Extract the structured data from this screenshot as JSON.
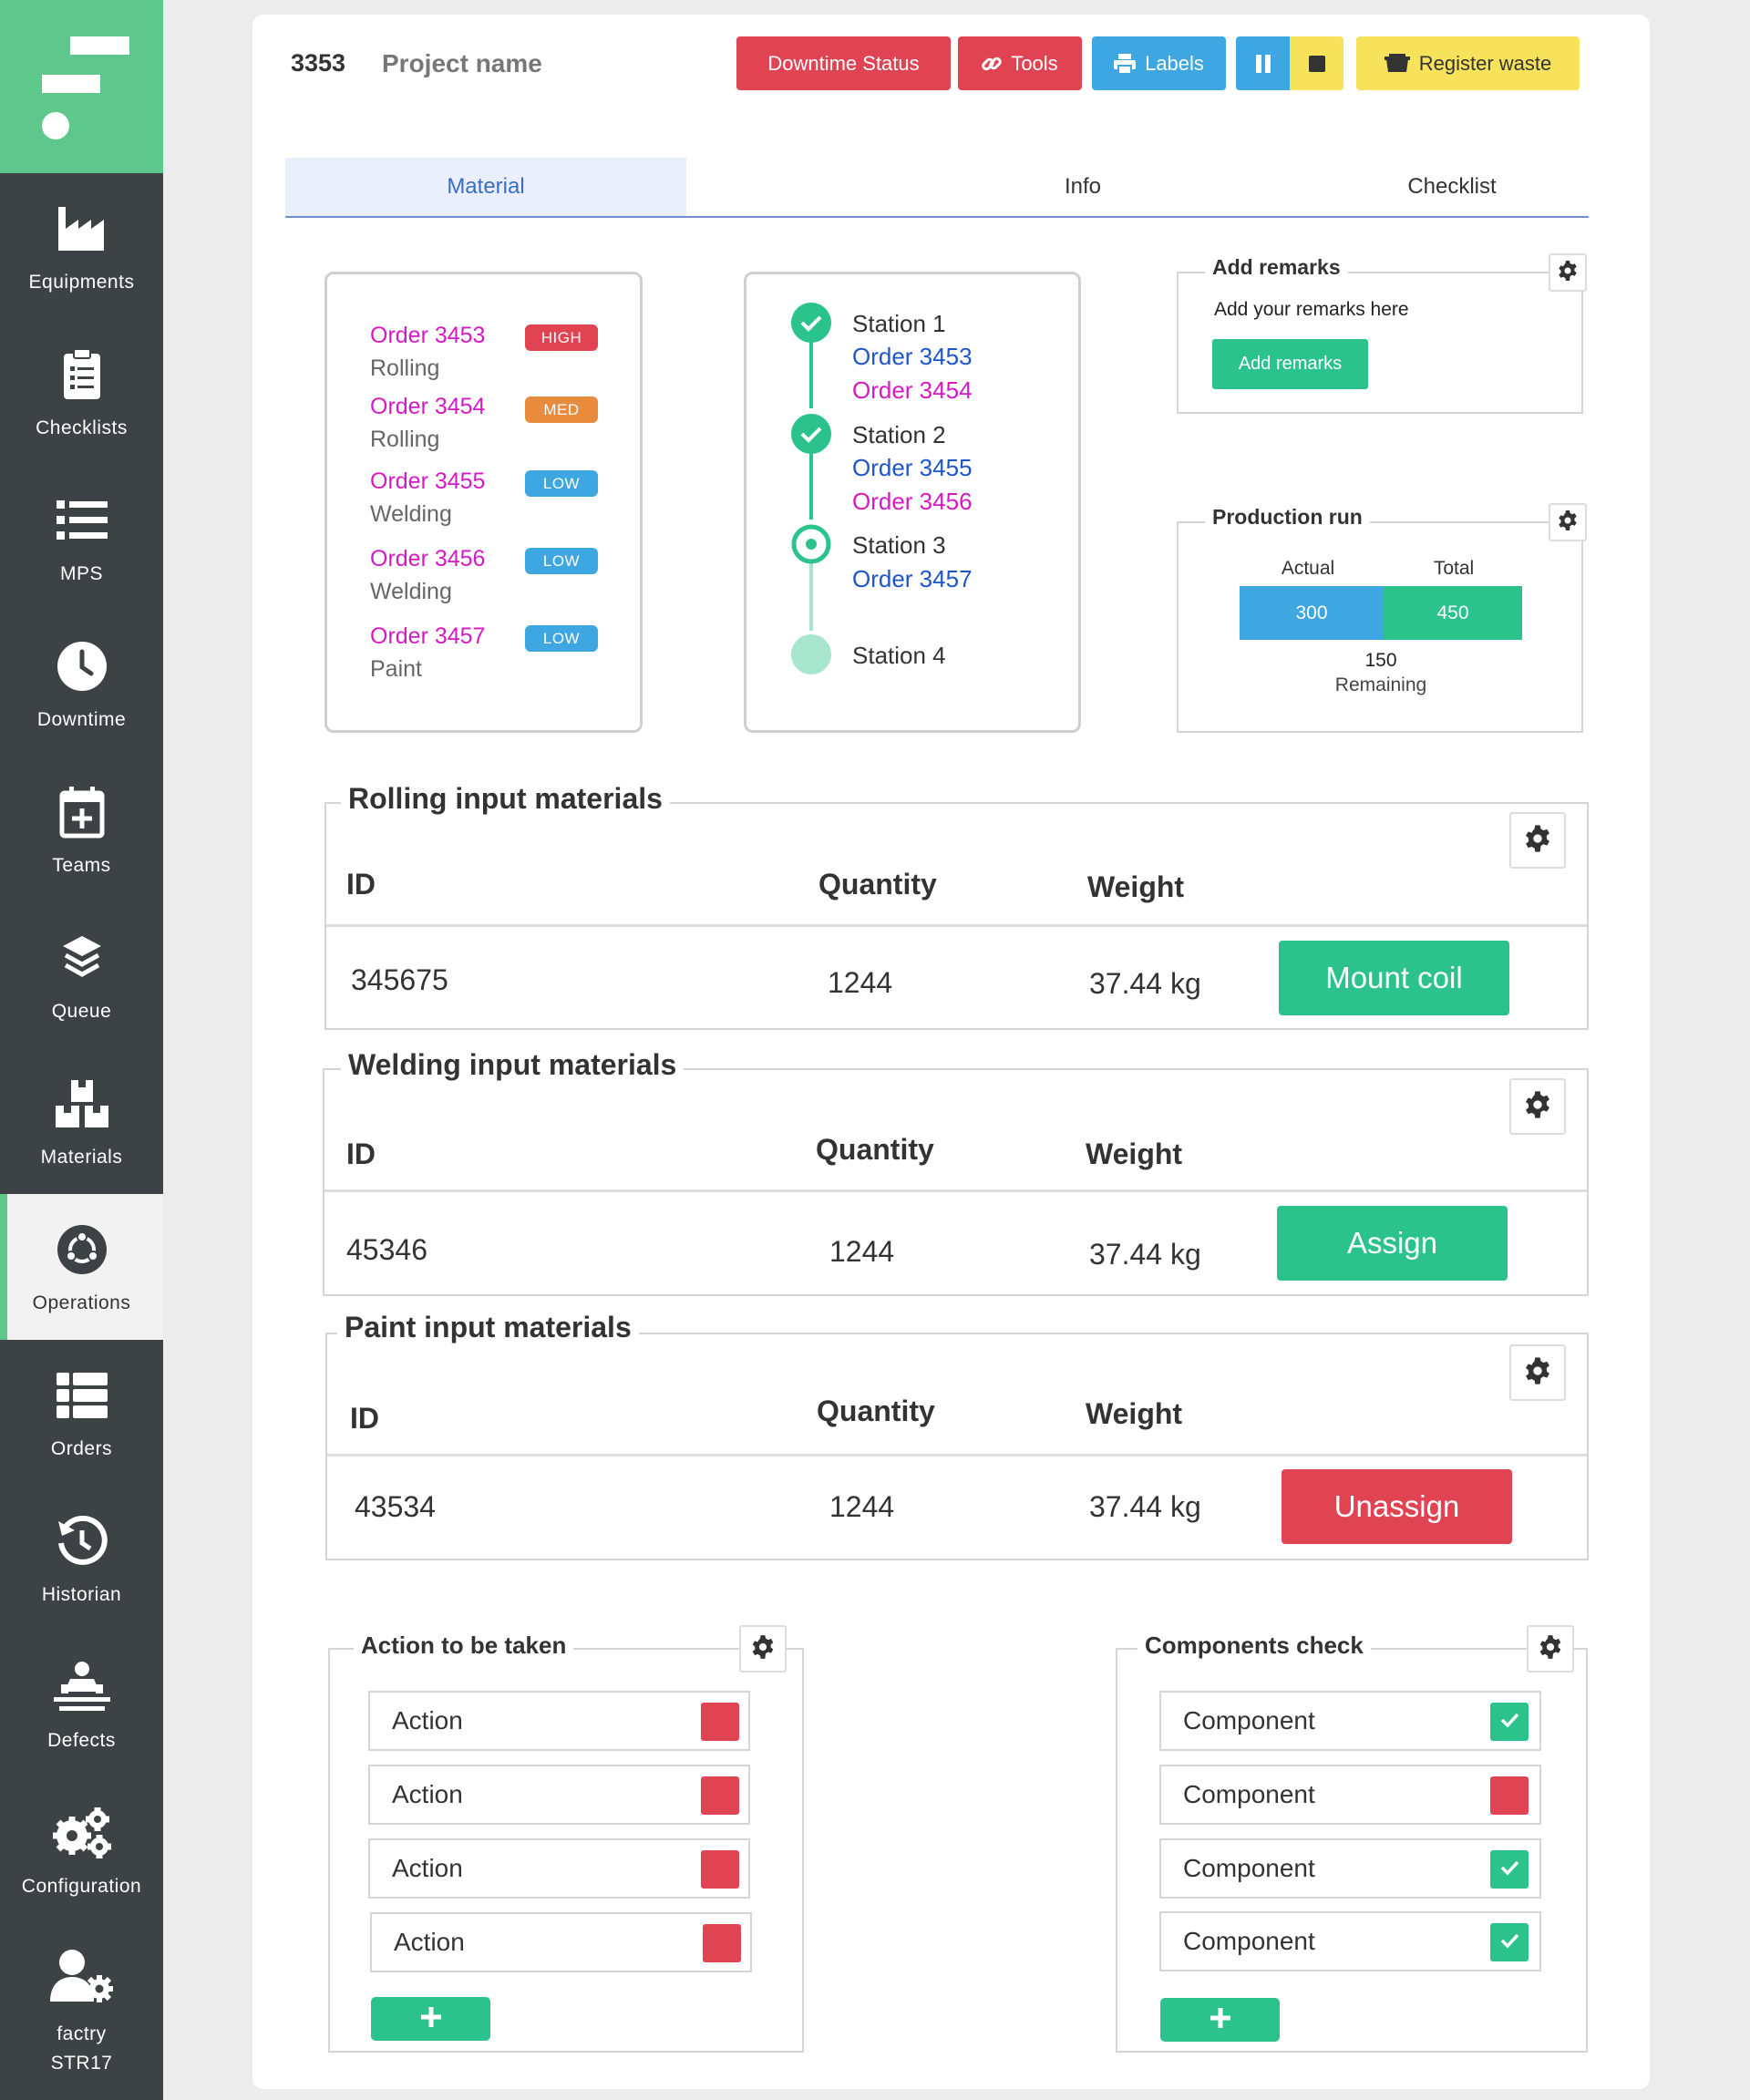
{
  "sidebar": {
    "items": [
      {
        "label": "Equipments",
        "icon": "factory-icon"
      },
      {
        "label": "Checklists",
        "icon": "clipboard-icon"
      },
      {
        "label": "MPS",
        "icon": "list-icon"
      },
      {
        "label": "Downtime",
        "icon": "clock-icon"
      },
      {
        "label": "Teams",
        "icon": "calendar-plus-icon"
      },
      {
        "label": "Queue",
        "icon": "layers-icon"
      },
      {
        "label": "Materials",
        "icon": "boxes-icon"
      },
      {
        "label": "Operations",
        "icon": "ubuntu-circle-icon",
        "active": true
      },
      {
        "label": "Orders",
        "icon": "table-list-icon"
      },
      {
        "label": "Historian",
        "icon": "history-icon"
      },
      {
        "label": "Defects",
        "icon": "defects-icon"
      },
      {
        "label": "Configuration",
        "icon": "gears-icon"
      }
    ],
    "user": {
      "name": "factry",
      "id": "STR17",
      "icon": "user-gear-icon"
    }
  },
  "header": {
    "project_number": "3353",
    "project_name": "Project name",
    "buttons": {
      "downtime_status": "Downtime Status",
      "tools": "Tools",
      "labels": "Labels",
      "register_waste": "Register waste"
    },
    "colors": {
      "danger": "#e04352",
      "info": "#3ea6e0",
      "warning": "#f7e35b",
      "success": "#2bc38b"
    }
  },
  "tabs": [
    {
      "label": "Material",
      "active": true
    },
    {
      "label": "Info"
    },
    {
      "label": "Checklist"
    }
  ],
  "orders": [
    {
      "order": "Order 3453",
      "priority": "HIGH",
      "process": "Rolling"
    },
    {
      "order": "Order 3454",
      "priority": "MED",
      "process": "Rolling"
    },
    {
      "order": "Order 3455",
      "priority": "LOW",
      "process": "Welding"
    },
    {
      "order": "Order 3456",
      "priority": "LOW",
      "process": "Welding"
    },
    {
      "order": "Order 3457",
      "priority": "LOW",
      "process": "Paint"
    }
  ],
  "stations": [
    {
      "name": "Station 1",
      "status": "done",
      "orders": [
        "Order 3453",
        "Order 3454"
      ]
    },
    {
      "name": "Station 2",
      "status": "done",
      "orders": [
        "Order 3455",
        "Order 3456"
      ]
    },
    {
      "name": "Station 3",
      "status": "current",
      "orders": [
        "Order 3457"
      ]
    },
    {
      "name": "Station 4",
      "status": "pending",
      "orders": []
    }
  ],
  "remarks": {
    "title": "Add remarks",
    "placeholder": "Add your remarks here",
    "button": "Add remarks"
  },
  "production_run": {
    "title": "Production run",
    "actual_label": "Actual",
    "total_label": "Total",
    "actual": "300",
    "total": "450",
    "remaining": "150",
    "remaining_label": "Remaining"
  },
  "materials": {
    "headers": {
      "id": "ID",
      "quantity": "Quantity",
      "weight": "Weight"
    },
    "sections": [
      {
        "title": "Rolling input materials",
        "id": "345675",
        "quantity": "1244",
        "weight": "37.44 kg",
        "action": "Mount coil"
      },
      {
        "title": "Welding input materials",
        "id": "45346",
        "quantity": "1244",
        "weight": "37.44 kg",
        "action": "Assign"
      },
      {
        "title": "Paint input materials",
        "id": "43534",
        "quantity": "1244",
        "weight": "37.44 kg",
        "action": "Unassign"
      }
    ]
  },
  "actions": {
    "title": "Action to be taken",
    "items": [
      {
        "label": "Action",
        "checked": false
      },
      {
        "label": "Action",
        "checked": false
      },
      {
        "label": "Action",
        "checked": false
      },
      {
        "label": "Action",
        "checked": false
      }
    ]
  },
  "components": {
    "title": "Components check",
    "items": [
      {
        "label": "Component",
        "checked": true
      },
      {
        "label": "Component",
        "checked": false
      },
      {
        "label": "Component",
        "checked": true
      },
      {
        "label": "Component",
        "checked": true
      }
    ]
  }
}
